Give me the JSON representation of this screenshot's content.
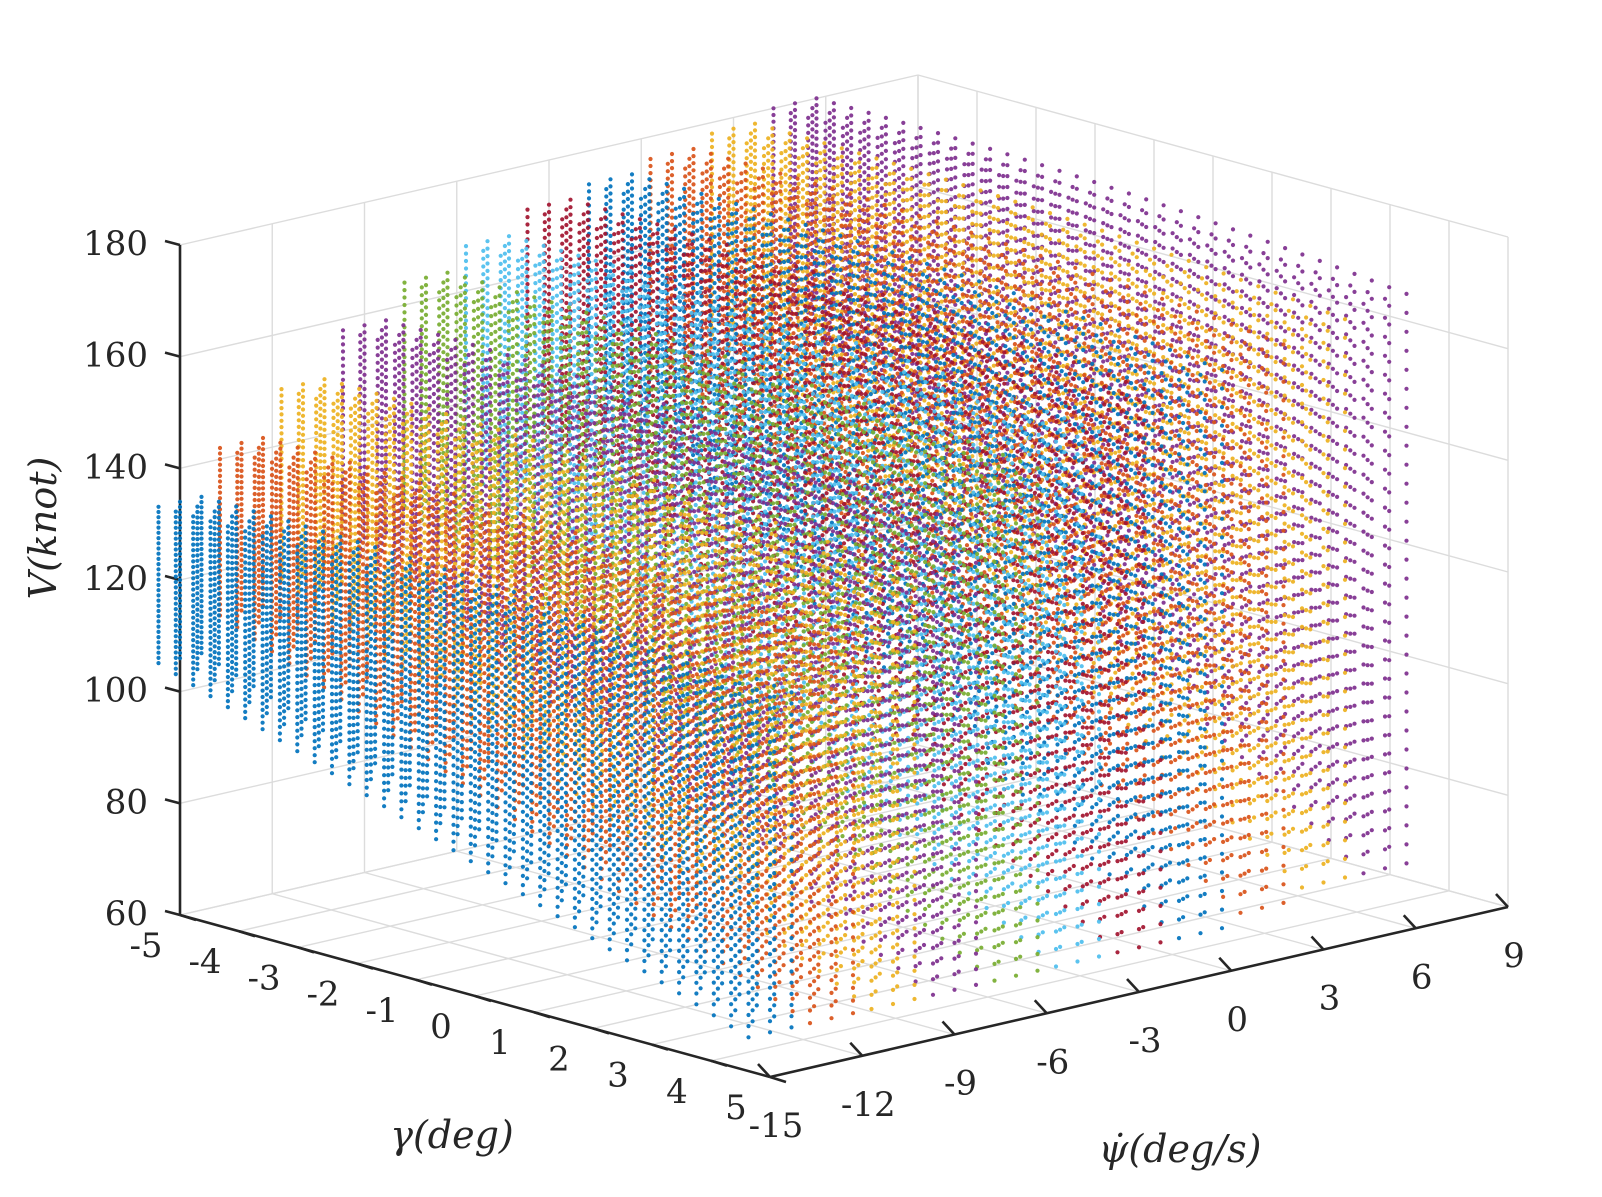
{
  "colors": {
    "palette": [
      "#0072BD",
      "#D95319",
      "#EDB120",
      "#7E2F8E",
      "#77AC30",
      "#4DBEEE",
      "#A2142F"
    ],
    "axis": "#262626",
    "grid": "#dcdcdc",
    "background": "#ffffff"
  },
  "chart_data": {
    "type": "scatter",
    "subtype": "3d-scatter",
    "title": "",
    "xlabel": "ψ̇(deg/s)",
    "ylabel": "γ(deg)",
    "zlabel": "V(knot)",
    "xlim": [
      -15,
      9
    ],
    "ylim": [
      -5,
      5
    ],
    "zlim": [
      60,
      180
    ],
    "x_ticks": [
      "-15",
      "-12",
      "-9",
      "-6",
      "-3",
      "0",
      "3",
      "6",
      "9"
    ],
    "y_ticks": [
      "-5",
      "-4",
      "-3",
      "-2",
      "-1",
      "0",
      "1",
      "2",
      "3",
      "4",
      "5"
    ],
    "z_ticks": [
      "60",
      "80",
      "100",
      "120",
      "140",
      "160",
      "180"
    ],
    "grid": true,
    "legend": "none",
    "series": [
      {
        "color": "#0072BD",
        "psi_dot": -15,
        "gamma_range": [
          -5,
          5
        ],
        "v_min_at_gamma_min": 106,
        "v_min_at_gamma_max": 68,
        "v_max": 134
      },
      {
        "color": "#D95319",
        "psi_dot": -13,
        "gamma_range": [
          -5,
          5
        ],
        "v_min_at_gamma_min": 112,
        "v_min_at_gamma_max": 68,
        "v_max": 142
      },
      {
        "color": "#EDB120",
        "psi_dot": -11,
        "gamma_range": [
          -5,
          5
        ],
        "v_min_at_gamma_min": 116,
        "v_min_at_gamma_max": 68,
        "v_max": 150
      },
      {
        "color": "#7E2F8E",
        "psi_dot": -9,
        "gamma_range": [
          -5,
          5
        ],
        "v_min_at_gamma_min": 120,
        "v_min_at_gamma_max": 68,
        "v_max": 158
      },
      {
        "color": "#77AC30",
        "psi_dot": -7,
        "gamma_range": [
          -5,
          5
        ],
        "v_min_at_gamma_min": 124,
        "v_min_at_gamma_max": 68,
        "v_max": 164
      },
      {
        "color": "#4DBEEE",
        "psi_dot": -5,
        "gamma_range": [
          -5,
          5
        ],
        "v_min_at_gamma_min": 128,
        "v_min_at_gamma_max": 68,
        "v_max": 168
      },
      {
        "color": "#A2142F",
        "psi_dot": -3,
        "gamma_range": [
          -5,
          5
        ],
        "v_min_at_gamma_min": 132,
        "v_min_at_gamma_max": 68,
        "v_max": 172
      },
      {
        "color": "#0072BD",
        "psi_dot": -1,
        "gamma_range": [
          -5,
          5
        ],
        "v_min_at_gamma_min": 136,
        "v_min_at_gamma_max": 68,
        "v_max": 174
      },
      {
        "color": "#D95319",
        "psi_dot": 1,
        "gamma_range": [
          -5,
          5
        ],
        "v_min_at_gamma_min": 138,
        "v_min_at_gamma_max": 70,
        "v_max": 176
      },
      {
        "color": "#EDB120",
        "psi_dot": 3,
        "gamma_range": [
          -5,
          5
        ],
        "v_min_at_gamma_min": 142,
        "v_min_at_gamma_max": 72,
        "v_max": 178
      },
      {
        "color": "#7E2F8E",
        "psi_dot": 5,
        "gamma_range": [
          -5,
          5
        ],
        "v_min_at_gamma_min": 144,
        "v_min_at_gamma_max": 72,
        "v_max": 180
      }
    ]
  }
}
